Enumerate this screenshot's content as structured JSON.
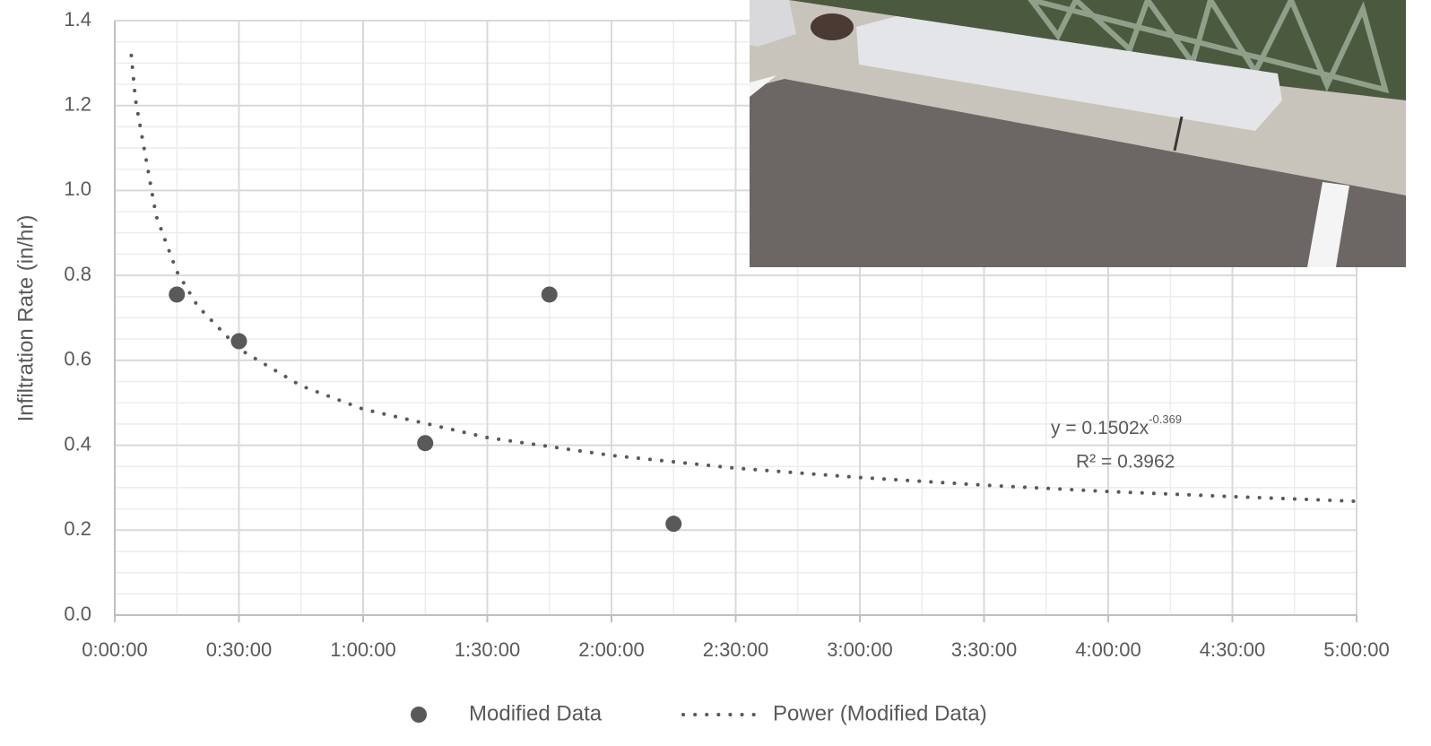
{
  "chart_data": {
    "type": "scatter",
    "y_label": "Infiltration Rate (in/hr)",
    "xlim": [
      0,
      300
    ],
    "xticks": [
      {
        "value": 0,
        "label": "0:00:00"
      },
      {
        "value": 30,
        "label": "0:30:00"
      },
      {
        "value": 60,
        "label": "1:00:00"
      },
      {
        "value": 90,
        "label": "1:30:00"
      },
      {
        "value": 120,
        "label": "2:00:00"
      },
      {
        "value": 150,
        "label": "2:30:00"
      },
      {
        "value": 180,
        "label": "3:00:00"
      },
      {
        "value": 210,
        "label": "3:30:00"
      },
      {
        "value": 240,
        "label": "4:00:00"
      },
      {
        "value": 270,
        "label": "4:30:00"
      },
      {
        "value": 300,
        "label": "5:00:00"
      }
    ],
    "ylim": [
      0,
      1.4
    ],
    "yticks": [
      {
        "value": 0,
        "label": "0.0"
      },
      {
        "value": 0.2,
        "label": "0.2"
      },
      {
        "value": 0.4,
        "label": "0.4"
      },
      {
        "value": 0.6,
        "label": "0.6"
      },
      {
        "value": 0.8,
        "label": "0.8"
      },
      {
        "value": 1,
        "label": "1.0"
      },
      {
        "value": 1.2,
        "label": "1.2"
      },
      {
        "value": 1.4,
        "label": "1.4"
      }
    ],
    "grid": true,
    "legend": "bottom",
    "series": [
      {
        "name": "Modified Data",
        "type": "scatter",
        "color": "#595959",
        "x": [
          15,
          30,
          75,
          105,
          135
        ],
        "values": [
          0.755,
          0.645,
          0.405,
          0.755,
          0.215
        ]
      },
      {
        "name": "Power (Modified Data)",
        "type": "line",
        "style": "dotted",
        "color": "#595959",
        "x": [
          4,
          5,
          10,
          15,
          20,
          30,
          45,
          60,
          90,
          120,
          150,
          180,
          210,
          240,
          270,
          300
        ],
        "values": [
          1.318,
          1.214,
          0.94,
          0.809,
          0.728,
          0.627,
          0.54,
          0.485,
          0.418,
          0.376,
          0.346,
          0.324,
          0.306,
          0.291,
          0.279,
          0.268
        ]
      }
    ],
    "annotation": {
      "equation": "y = 0.1502x",
      "exponent": "-0.369",
      "r_squared": "R² = 0.3962"
    }
  }
}
